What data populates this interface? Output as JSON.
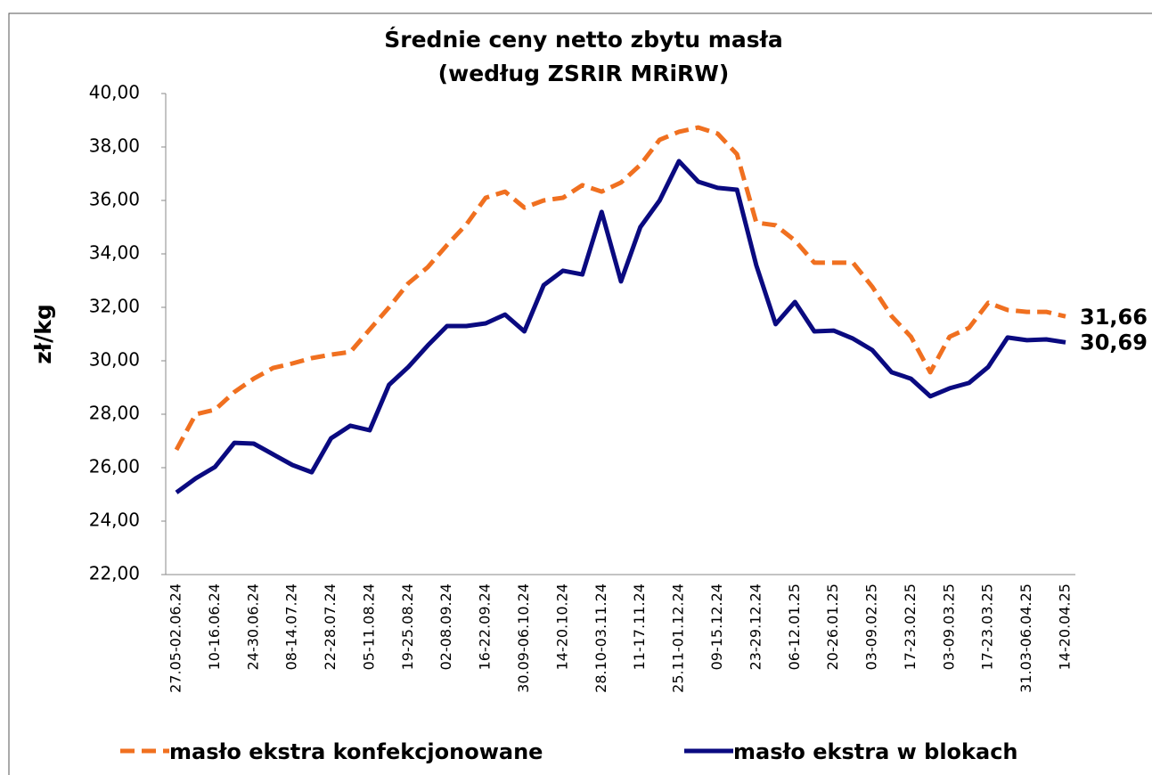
{
  "chart_data": {
    "type": "line",
    "title": "Średnie ceny netto zbytu masła",
    "subtitle": "(według ZSRIR MRiRW)",
    "y_label": "zł/kg",
    "categories": [
      "27.05-02.06.24",
      null,
      "10-16.06.24",
      null,
      "24-30.06.24",
      null,
      "08-14.07.24",
      null,
      "22-28.07.24",
      null,
      "05-11.08.24",
      null,
      "19-25.08.24",
      null,
      "02-08.09.24",
      null,
      "16-22.09.24",
      null,
      "30.09-06.10.24",
      null,
      "14-20.10.24",
      null,
      "28.10-03.11.24",
      null,
      "11-17.11.24",
      null,
      "25.11-01.12.24",
      null,
      "09-15.12.24",
      null,
      "23-29.12.24",
      null,
      "06-12.01.25",
      null,
      "20-26.01.25",
      null,
      "03-09.02.25",
      null,
      "17-23.02.25",
      null,
      "03-09.03.25",
      null,
      "17-23.03.25",
      null,
      "31.03-06.04.25",
      null,
      "14-20.04.25"
    ],
    "series": [
      {
        "name": "masło ekstra konfekcjonowane",
        "color": "#f07020",
        "dashed": true,
        "values": [
          26.67,
          28.0,
          28.17,
          28.83,
          29.33,
          29.73,
          29.9,
          30.1,
          30.23,
          30.33,
          31.17,
          32.0,
          32.9,
          33.5,
          34.33,
          35.1,
          36.1,
          36.33,
          35.73,
          36.0,
          36.1,
          36.57,
          36.33,
          36.67,
          37.33,
          38.27,
          38.57,
          38.73,
          38.5,
          37.73,
          35.17,
          35.07,
          34.5,
          33.67,
          33.67,
          33.67,
          32.77,
          31.67,
          30.9,
          29.57,
          30.9,
          31.23,
          32.17,
          31.9,
          31.83,
          31.83,
          31.66
        ],
        "value_labels": [
          null,
          null,
          null,
          null,
          null,
          null,
          null,
          null,
          null,
          null,
          null,
          null,
          null,
          null,
          null,
          null,
          null,
          null,
          null,
          null,
          null,
          null,
          null,
          null,
          null,
          null,
          null,
          null,
          null,
          null,
          null,
          null,
          null,
          null,
          null,
          null,
          null,
          null,
          null,
          null,
          null,
          null,
          null,
          null,
          null,
          null,
          "31,66"
        ]
      },
      {
        "name": "masło ekstra w blokach",
        "color": "#0a0a80",
        "dashed": false,
        "values": [
          25.07,
          25.6,
          26.03,
          26.93,
          26.9,
          26.5,
          26.1,
          25.83,
          27.1,
          27.57,
          27.4,
          29.1,
          29.77,
          30.57,
          31.3,
          31.3,
          31.4,
          31.73,
          31.1,
          32.83,
          33.37,
          33.23,
          35.57,
          32.97,
          35.0,
          36.0,
          37.47,
          36.7,
          36.47,
          36.4,
          33.57,
          31.37,
          32.2,
          31.1,
          31.13,
          30.83,
          30.4,
          29.57,
          29.33,
          28.67,
          28.97,
          29.17,
          29.77,
          30.87,
          30.77,
          30.8,
          30.69
        ],
        "value_labels": [
          null,
          null,
          null,
          null,
          null,
          null,
          null,
          null,
          null,
          null,
          null,
          null,
          null,
          null,
          null,
          null,
          null,
          null,
          null,
          null,
          null,
          null,
          null,
          null,
          null,
          null,
          null,
          null,
          null,
          null,
          null,
          null,
          null,
          null,
          null,
          null,
          null,
          null,
          null,
          null,
          null,
          null,
          null,
          null,
          null,
          null,
          "30,69"
        ]
      }
    ],
    "ylim": [
      22,
      40
    ],
    "yticks": [
      {
        "value": 22,
        "label": "22,00"
      },
      {
        "value": 24,
        "label": "24,00"
      },
      {
        "value": 26,
        "label": "26,00"
      },
      {
        "value": 28,
        "label": "28,00"
      },
      {
        "value": 30,
        "label": "30,00"
      },
      {
        "value": 32,
        "label": "32,00"
      },
      {
        "value": 34,
        "label": "34,00"
      },
      {
        "value": 36,
        "label": "36,00"
      },
      {
        "value": 38,
        "label": "38,00"
      },
      {
        "value": 40,
        "label": "40,00"
      }
    ],
    "grid": false,
    "legend": "bottom"
  }
}
